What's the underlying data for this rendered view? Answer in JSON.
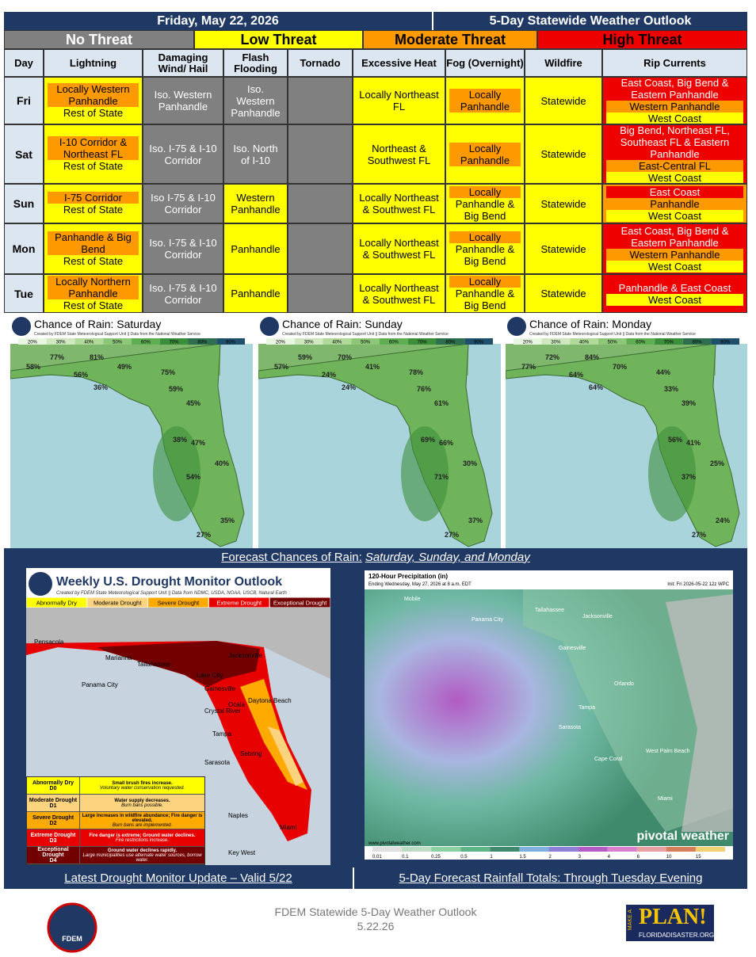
{
  "header": {
    "date": "Friday, May 22, 2026",
    "title": "5-Day Statewide Weather Outlook"
  },
  "threat_levels": [
    {
      "label": "No Threat",
      "color": "#808080"
    },
    {
      "label": "Low Threat",
      "color": "#ffff00"
    },
    {
      "label": "Moderate Threat",
      "color": "#ff9900"
    },
    {
      "label": "High Threat",
      "color": "#ee0000"
    }
  ],
  "table": {
    "columns": [
      "Day",
      "Lightning",
      "Damaging Wind/ Hail",
      "Flash Flooding",
      "Tornado",
      "Excessive Heat",
      "Fog (Overnight)",
      "Wildfire",
      "Rip Currents"
    ],
    "rows": [
      {
        "day": "Fri",
        "cells": [
          {
            "color": "#ffff00",
            "items": [
              {
                "text": "Locally Western Panhandle",
                "color": "#ff9900"
              },
              {
                "text": "Rest of State",
                "color": "#ffff00"
              }
            ]
          },
          {
            "color": "#808080",
            "items": [
              {
                "text": "Iso. Western Panhandle",
                "color": "#808080"
              }
            ]
          },
          {
            "color": "#808080",
            "items": [
              {
                "text": "Iso. Western Panhandle",
                "color": "#808080"
              }
            ]
          },
          {
            "color": "#808080",
            "items": []
          },
          {
            "color": "#ffff00",
            "items": [
              {
                "text": "Locally Northeast FL",
                "color": "#ffff00"
              }
            ]
          },
          {
            "color": "#ffff00",
            "items": [
              {
                "text": "Locally Panhandle",
                "color": "#ff9900"
              }
            ]
          },
          {
            "color": "#ffff00",
            "items": [
              {
                "text": "Statewide",
                "color": "#ffff00"
              }
            ]
          },
          {
            "color": "#ee0000",
            "items": [
              {
                "text": "East Coast, Big Bend & Eastern Panhandle",
                "color": "#ee0000"
              },
              {
                "text": "Western Panhandle",
                "color": "#ff9900"
              },
              {
                "text": "West Coast",
                "color": "#ffff00"
              }
            ]
          }
        ]
      },
      {
        "day": "Sat",
        "cells": [
          {
            "color": "#ffff00",
            "items": [
              {
                "text": "I-10 Corridor & Northeast FL",
                "color": "#ff9900"
              },
              {
                "text": "Rest of State",
                "color": "#ffff00"
              }
            ]
          },
          {
            "color": "#808080",
            "items": [
              {
                "text": "Iso. I-75 & I-10 Corridor",
                "color": "#808080"
              }
            ]
          },
          {
            "color": "#808080",
            "items": [
              {
                "text": "Iso. North of I-10",
                "color": "#808080"
              }
            ]
          },
          {
            "color": "#808080",
            "items": []
          },
          {
            "color": "#ffff00",
            "items": [
              {
                "text": "Northeast & Southwest FL",
                "color": "#ffff00"
              }
            ]
          },
          {
            "color": "#ffff00",
            "items": [
              {
                "text": "Locally Panhandle",
                "color": "#ff9900"
              }
            ]
          },
          {
            "color": "#ffff00",
            "items": [
              {
                "text": "Statewide",
                "color": "#ffff00"
              }
            ]
          },
          {
            "color": "#ee0000",
            "items": [
              {
                "text": "Big Bend, Northeast FL, Southeast FL & Eastern Panhandle",
                "color": "#ee0000"
              },
              {
                "text": "East-Central FL",
                "color": "#ff9900"
              },
              {
                "text": "West Coast",
                "color": "#ffff00"
              }
            ]
          }
        ]
      },
      {
        "day": "Sun",
        "cells": [
          {
            "color": "#ffff00",
            "items": [
              {
                "text": "I-75 Corridor",
                "color": "#ff9900"
              },
              {
                "text": "Rest of State",
                "color": "#ffff00"
              }
            ]
          },
          {
            "color": "#808080",
            "items": [
              {
                "text": "Iso I-75 & I-10 Corridor",
                "color": "#808080"
              }
            ]
          },
          {
            "color": "#ffff00",
            "items": [
              {
                "text": "Western Panhandle",
                "color": "#ffff00"
              }
            ]
          },
          {
            "color": "#808080",
            "items": []
          },
          {
            "color": "#ffff00",
            "items": [
              {
                "text": "Locally Northeast & Southwest FL",
                "color": "#ffff00"
              }
            ]
          },
          {
            "color": "#ffff00",
            "items": [
              {
                "text": "Locally",
                "color": "#ff9900"
              },
              {
                "text": "Panhandle & Big Bend",
                "color": "#ffff00"
              }
            ]
          },
          {
            "color": "#ffff00",
            "items": [
              {
                "text": "Statewide",
                "color": "#ffff00"
              }
            ]
          },
          {
            "color": "#ff9900",
            "items": [
              {
                "text": "East Coast",
                "color": "#ee0000"
              },
              {
                "text": "Panhandle",
                "color": "#ff9900"
              },
              {
                "text": "West Coast",
                "color": "#ffff00"
              }
            ]
          }
        ]
      },
      {
        "day": "Mon",
        "cells": [
          {
            "color": "#ffff00",
            "items": [
              {
                "text": "Panhandle & Big Bend",
                "color": "#ff9900"
              },
              {
                "text": "Rest of State",
                "color": "#ffff00"
              }
            ]
          },
          {
            "color": "#808080",
            "items": [
              {
                "text": "Iso. I-75 & I-10 Corridor",
                "color": "#808080"
              }
            ]
          },
          {
            "color": "#ffff00",
            "items": [
              {
                "text": "Panhandle",
                "color": "#ffff00"
              }
            ]
          },
          {
            "color": "#808080",
            "items": []
          },
          {
            "color": "#ffff00",
            "items": [
              {
                "text": "Locally Northeast & Southwest FL",
                "color": "#ffff00"
              }
            ]
          },
          {
            "color": "#ffff00",
            "items": [
              {
                "text": "Locally",
                "color": "#ff9900"
              },
              {
                "text": "Panhandle & Big Bend",
                "color": "#ffff00"
              }
            ]
          },
          {
            "color": "#ffff00",
            "items": [
              {
                "text": "Statewide",
                "color": "#ffff00"
              }
            ]
          },
          {
            "color": "#ee0000",
            "items": [
              {
                "text": "East Coast, Big Bend & Eastern Panhandle",
                "color": "#ee0000"
              },
              {
                "text": "Western Panhandle",
                "color": "#ff9900"
              },
              {
                "text": "West Coast",
                "color": "#ffff00"
              }
            ]
          }
        ]
      },
      {
        "day": "Tue",
        "cells": [
          {
            "color": "#ffff00",
            "items": [
              {
                "text": "Locally Northern Panhandle",
                "color": "#ff9900"
              },
              {
                "text": "Rest of State",
                "color": "#ffff00"
              }
            ]
          },
          {
            "color": "#808080",
            "items": [
              {
                "text": "Iso. I-75 & I-10 Corridor",
                "color": "#808080"
              }
            ]
          },
          {
            "color": "#ffff00",
            "items": [
              {
                "text": "Panhandle",
                "color": "#ffff00"
              }
            ]
          },
          {
            "color": "#808080",
            "items": []
          },
          {
            "color": "#ffff00",
            "items": [
              {
                "text": "Locally Northeast & Southwest FL",
                "color": "#ffff00"
              }
            ]
          },
          {
            "color": "#ffff00",
            "items": [
              {
                "text": "Locally",
                "color": "#ff9900"
              },
              {
                "text": "Panhandle & Big Bend",
                "color": "#ffff00"
              }
            ]
          },
          {
            "color": "#ffff00",
            "items": [
              {
                "text": "Statewide",
                "color": "#ffff00"
              }
            ]
          },
          {
            "color": "#ee0000",
            "items": [
              {
                "text": "Panhandle & East Coast",
                "color": "#ee0000"
              },
              {
                "text": "West Coast",
                "color": "#ffff00"
              }
            ]
          }
        ]
      }
    ]
  },
  "rain_maps": {
    "credit": "Created by FDEM State Meteorological Support Unit || Data from the National Weather Service",
    "scale": [
      "20%",
      "30%",
      "40%",
      "50%",
      "60%",
      "70%",
      "80%",
      "90%"
    ],
    "panels": [
      {
        "title": "Chance of Rain: Saturday",
        "labels": [
          "58%",
          "77%",
          "81%",
          "56%",
          "49%",
          "75%",
          "36%",
          "59%",
          "45%",
          "38%",
          "47%",
          "40%",
          "54%",
          "35%",
          "27%"
        ]
      },
      {
        "title": "Chance of Rain: Sunday",
        "labels": [
          "57%",
          "59%",
          "70%",
          "24%",
          "41%",
          "78%",
          "24%",
          "76%",
          "61%",
          "69%",
          "66%",
          "30%",
          "71%",
          "37%",
          "27%"
        ]
      },
      {
        "title": "Chance of Rain: Monday",
        "labels": [
          "77%",
          "72%",
          "84%",
          "64%",
          "70%",
          "44%",
          "64%",
          "33%",
          "39%",
          "56%",
          "41%",
          "25%",
          "37%",
          "24%",
          "27%"
        ]
      }
    ],
    "caption": {
      "text": "Forecast Chances of Rain: ",
      "emphasis": "Saturday, Sunday, and Monday"
    }
  },
  "drought": {
    "title": "Weekly U.S. Drought Monitor Outlook",
    "credit": "Created by FDEM State Meteorological Support Unit || Data from NDMC, USDA, NOAA, USCB, Natural Earth",
    "levels": [
      {
        "name": "Abnormally Dry",
        "code": "D0",
        "impact": "Small brush fires increase.",
        "note": "Voluntary water conservation requested.",
        "color": "#ffff00"
      },
      {
        "name": "Moderate Drought",
        "code": "D1",
        "impact": "Water supply decreases.",
        "note": "Burn bans possible.",
        "color": "#fcd37f"
      },
      {
        "name": "Severe Drought",
        "code": "D2",
        "impact": "Large increases in wildfire abundance; Fire danger is elevated.",
        "note": "Burn bans are implemented.",
        "color": "#ffaa00"
      },
      {
        "name": "Extreme Drought",
        "code": "D3",
        "impact": "Fire danger is extreme; Ground water declines.",
        "note": "Fire restrictions increase.",
        "color": "#e60000"
      },
      {
        "name": "Exceptional Drought",
        "code": "D4",
        "impact": "Ground water declines rapidly.",
        "note": "Large municipalities use alternate water sources, borrow water.",
        "color": "#730000"
      }
    ],
    "cities": [
      "Pensacola",
      "Marianna",
      "Tallahassee",
      "Panama City",
      "Jacksonville",
      "Lake City",
      "Gainesville",
      "Ocala",
      "Daytona Beach",
      "Crystal River",
      "Tampa",
      "Sebring",
      "Sarasota",
      "Naples",
      "Miami",
      "Key West"
    ],
    "caption": "Latest Drought Monitor Update – Valid 5/22"
  },
  "precip": {
    "title": "120-Hour Precipitation (in)",
    "valid": "Ending Wednesday, May 27, 2026 at 8 a.m. EDT",
    "init": "Init: Fri 2026-05-22 12z WPC",
    "brand": "pivotal weather",
    "site": "www.pivotalweather.com",
    "cities": [
      "Mobile",
      "Tallahassee",
      "Jacksonville",
      "Panama City",
      "Gainesville",
      "Orlando",
      "Tampa",
      "Sarasota",
      "Cape Coral",
      "West Palm Beach",
      "Miami"
    ],
    "scale": [
      "0.01",
      "0.1",
      "0.25",
      "0.5",
      "1",
      "1.5",
      "2",
      "3",
      "4",
      "6",
      "10",
      "15"
    ],
    "caption": "5-Day Forecast Rainfall Totals: Through Tuesday Evening"
  },
  "footer": {
    "line1": "FDEM Statewide 5-Day Weather Outlook",
    "line2": "5.22.26",
    "seal": "FDEM",
    "plan_make": "MAKE A",
    "plan": "PLAN!",
    "plan_site": "FLORIDADISASTER.ORG"
  }
}
